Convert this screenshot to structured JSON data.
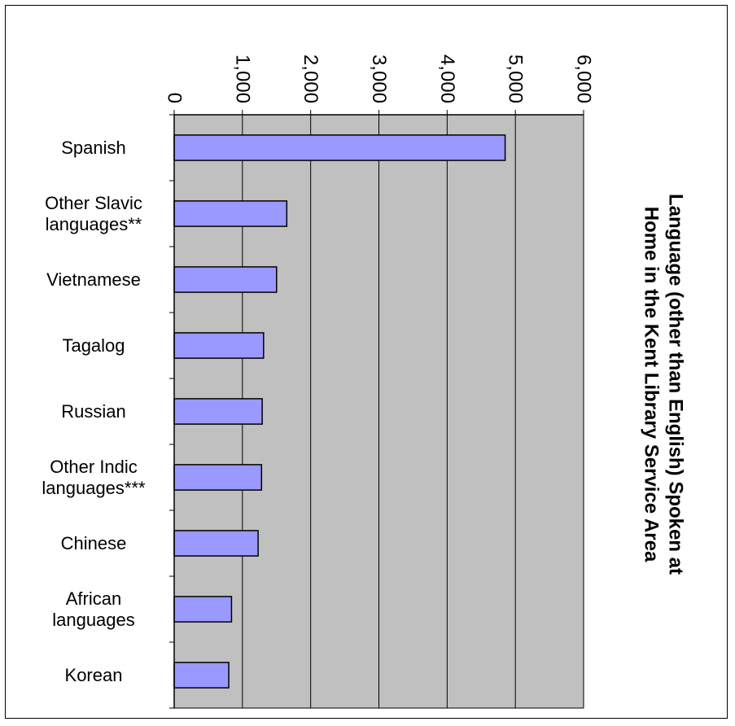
{
  "chart_data": {
    "type": "bar",
    "orientation": "horizontal",
    "title_lines": [
      "Language (other than English) Spoken at",
      "Home in the Kent Library Service Area"
    ],
    "categories": [
      "Spanish",
      "Other Slavic languages**",
      "Vietnamese",
      "Tagalog",
      "Russian",
      "Other Indic languages***",
      "Chinese",
      "African languages",
      "Korean"
    ],
    "category_lines": [
      [
        "Spanish"
      ],
      [
        "Other Slavic",
        "languages**"
      ],
      [
        "Vietnamese"
      ],
      [
        "Tagalog"
      ],
      [
        "Russian"
      ],
      [
        "Other Indic",
        "languages***"
      ],
      [
        "Chinese"
      ],
      [
        "African",
        "languages"
      ],
      [
        "Korean"
      ]
    ],
    "values": [
      4850,
      1650,
      1500,
      1310,
      1290,
      1280,
      1230,
      840,
      800
    ],
    "xlim": [
      0,
      6000
    ],
    "ticks": [
      0,
      1000,
      2000,
      3000,
      4000,
      5000,
      6000
    ],
    "tick_labels": [
      "0",
      "1,000",
      "2,000",
      "3,000",
      "4,000",
      "5,000",
      "6,000"
    ],
    "grid": "vertical",
    "legend": "none",
    "rotation": "clockwise-90",
    "colors": {
      "bar_fill": "#9999ff",
      "bar_stroke": "#000000",
      "plot_background": "#c0c0c0",
      "grid": "#000000"
    }
  }
}
